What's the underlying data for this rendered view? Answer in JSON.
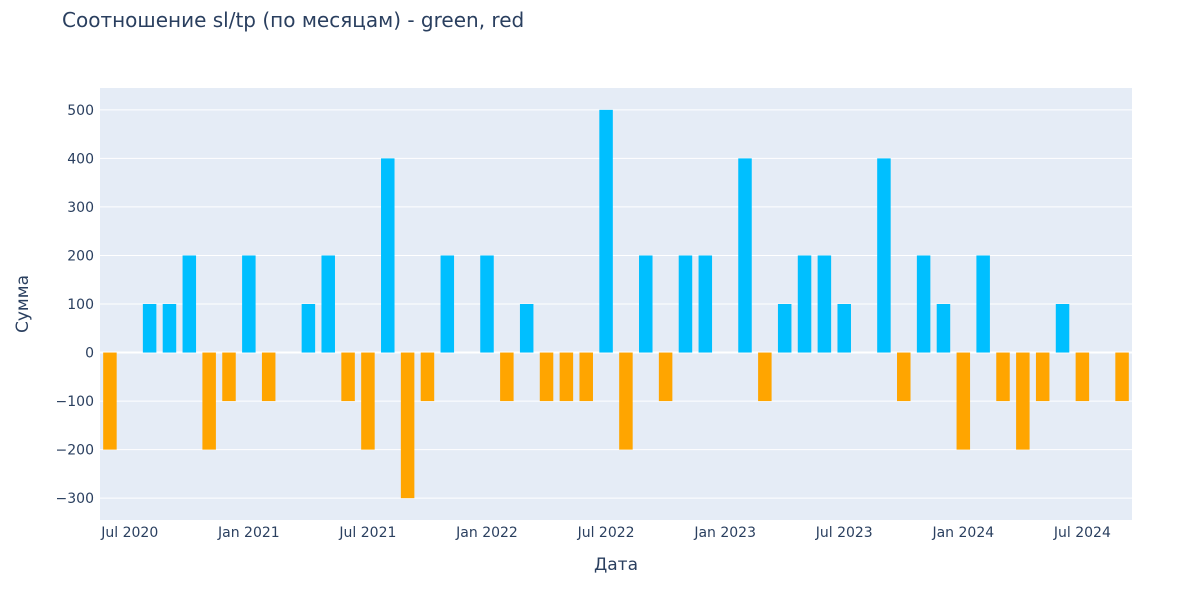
{
  "chart_data": {
    "type": "bar",
    "title": "Соотношение sl/tp (по месяцам) - green, red",
    "xlabel": "Дата",
    "ylabel": "Сумма",
    "ylim": [
      -345,
      545
    ],
    "yticks": [
      -300,
      -200,
      -100,
      0,
      100,
      200,
      300,
      400,
      500
    ],
    "ytick_labels": [
      "−300",
      "−200",
      "−100",
      "0",
      "100",
      "200",
      "300",
      "400",
      "500"
    ],
    "xticks": [
      {
        "month": "2020-07",
        "label": "Jul 2020"
      },
      {
        "month": "2021-01",
        "label": "Jan 2021"
      },
      {
        "month": "2021-07",
        "label": "Jul 2021"
      },
      {
        "month": "2022-01",
        "label": "Jan 2022"
      },
      {
        "month": "2022-07",
        "label": "Jul 2022"
      },
      {
        "month": "2023-01",
        "label": "Jan 2023"
      },
      {
        "month": "2023-07",
        "label": "Jul 2023"
      },
      {
        "month": "2024-01",
        "label": "Jan 2024"
      },
      {
        "month": "2024-07",
        "label": "Jul 2024"
      }
    ],
    "xrange_months": [
      "2020-06",
      "2024-09"
    ],
    "grid": true,
    "colors": {
      "positive": "#00bfff",
      "negative": "#ffa500",
      "plot_bg": "#e5ecf6",
      "grid": "#ffffff",
      "text": "#2a3f5f"
    },
    "x": [
      "2020-06",
      "2020-08",
      "2020-09",
      "2020-10",
      "2020-11",
      "2020-12",
      "2021-01",
      "2021-02",
      "2021-04",
      "2021-05",
      "2021-06",
      "2021-07",
      "2021-08",
      "2021-09",
      "2021-10",
      "2021-11",
      "2022-01",
      "2022-02",
      "2022-03",
      "2022-04",
      "2022-05",
      "2022-06",
      "2022-07",
      "2022-08",
      "2022-09",
      "2022-10",
      "2022-11",
      "2022-12",
      "2023-02",
      "2023-03",
      "2023-04",
      "2023-05",
      "2023-06",
      "2023-07",
      "2023-09",
      "2023-10",
      "2023-11",
      "2023-12",
      "2024-01",
      "2024-02",
      "2024-03",
      "2024-04",
      "2024-05",
      "2024-06",
      "2024-07",
      "2024-09"
    ],
    "values": [
      -200,
      100,
      100,
      200,
      -200,
      -100,
      200,
      -100,
      100,
      200,
      -100,
      -200,
      400,
      -300,
      -100,
      200,
      200,
      -100,
      100,
      -100,
      -100,
      -100,
      500,
      -200,
      200,
      -100,
      200,
      200,
      400,
      -100,
      100,
      200,
      200,
      100,
      400,
      -100,
      200,
      100,
      -200,
      200,
      -100,
      -200,
      -100,
      100,
      -100,
      -100
    ]
  }
}
